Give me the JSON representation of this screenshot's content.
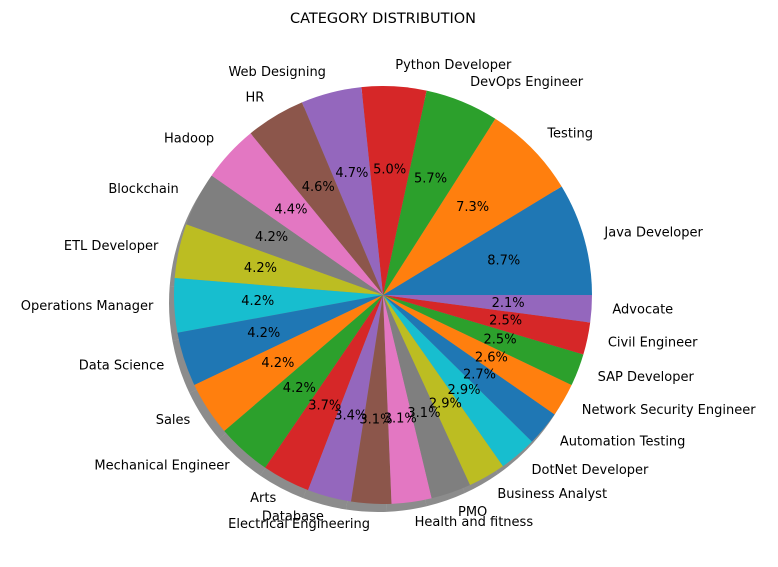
{
  "chart_data": {
    "type": "pie",
    "title": "CATEGORY DISTRIBUTION",
    "categories": [
      "Java Developer",
      "Testing",
      "DevOps Engineer",
      "Python Developer",
      "Web Designing",
      "HR",
      "Hadoop",
      "Blockchain",
      "ETL Developer",
      "Operations Manager",
      "Data Science",
      "Sales",
      "Mechanical Engineer",
      "Arts",
      "Database",
      "Electrical Engineering",
      "Health and fitness",
      "PMO",
      "Business Analyst",
      "DotNet Developer",
      "Automation Testing",
      "Network Security Engineer",
      "SAP Developer",
      "Civil Engineer",
      "Advocate"
    ],
    "values": [
      8.7,
      7.3,
      5.7,
      5.0,
      4.7,
      4.6,
      4.4,
      4.2,
      4.2,
      4.2,
      4.2,
      4.2,
      4.2,
      3.7,
      3.4,
      3.1,
      3.1,
      3.1,
      2.9,
      2.9,
      2.7,
      2.6,
      2.5,
      2.5,
      2.1
    ],
    "percent_labels": [
      "8.7%",
      "7.3%",
      "5.7%",
      "5.0%",
      "4.7%",
      "4.6%",
      "4.4%",
      "4.2%",
      "4.2%",
      "4.2%",
      "4.2%",
      "4.2%",
      "4.2%",
      "3.7%",
      "3.4%",
      "3.1%",
      "3.1%",
      "3.1%",
      "2.9%",
      "2.9%",
      "2.7%",
      "2.6%",
      "2.5%",
      "2.5%",
      "2.1%"
    ],
    "colors": [
      "#1f77b4",
      "#ff7f0e",
      "#2ca02c",
      "#d62728",
      "#9467bd",
      "#8c564b",
      "#e377c2",
      "#7f7f7f",
      "#bcbd22",
      "#17becf"
    ],
    "start_angle": 0,
    "direction": "counterclockwise",
    "shadow": true,
    "legend": "none"
  }
}
